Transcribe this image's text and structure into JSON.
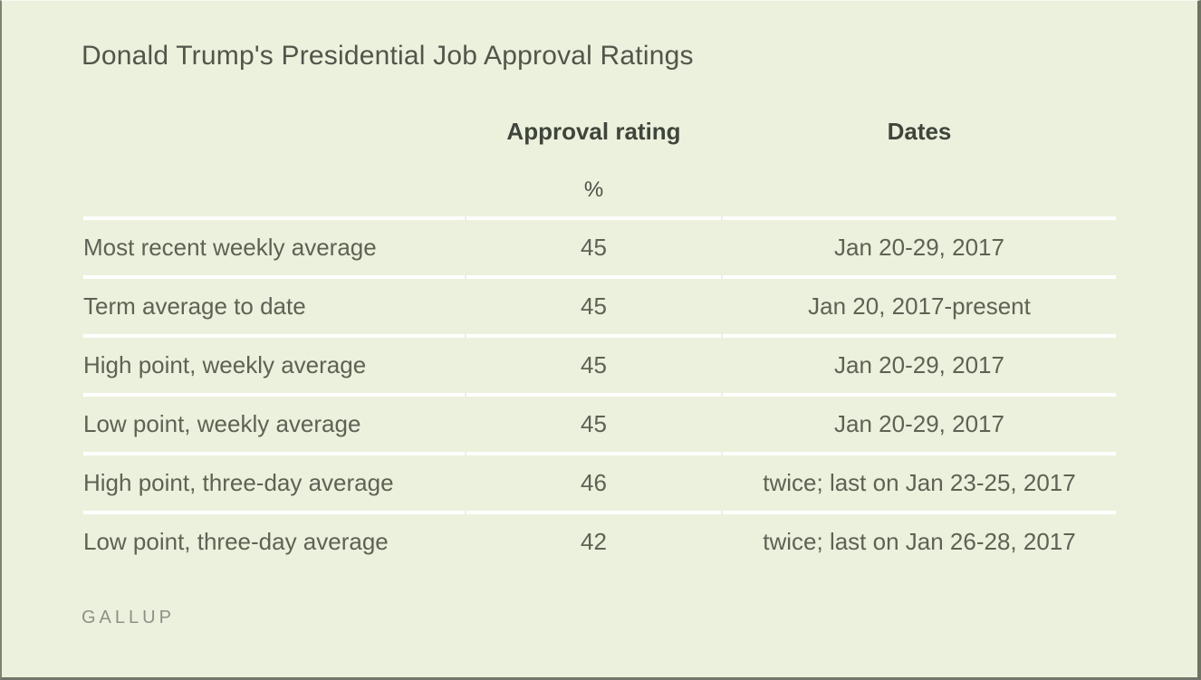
{
  "chart_data": {
    "type": "table",
    "title": "Donald Trump's Presidential Job Approval Ratings",
    "header": {
      "metric": "",
      "approval": "Approval rating",
      "approval_unit": "%",
      "dates": "Dates"
    },
    "rows": [
      {
        "metric": "Most recent weekly average",
        "approval": 45,
        "dates": "Jan 20-29, 2017"
      },
      {
        "metric": "Term average to date",
        "approval": 45,
        "dates": "Jan 20, 2017-present"
      },
      {
        "metric": "High point, weekly average",
        "approval": 45,
        "dates": "Jan 20-29, 2017"
      },
      {
        "metric": "Low point, weekly average",
        "approval": 45,
        "dates": "Jan 20-29, 2017"
      },
      {
        "metric": "High point, three-day average",
        "approval": 46,
        "dates": "twice; last on Jan 23-25, 2017"
      },
      {
        "metric": "Low point, three-day average",
        "approval": 42,
        "dates": "twice; last on Jan 26-28, 2017"
      }
    ],
    "source": "GALLUP",
    "layout": {
      "legend": "none",
      "grid": "white row dividers above each data row, none after last row"
    }
  },
  "colors": {
    "background": "#ECF1DD",
    "divider": "#FFFFFF",
    "title_text": "#51564B",
    "header_text": "#3F453B",
    "cell_text": "#5D6354",
    "source_text": "#8B9186",
    "frame": "#6E7366"
  }
}
